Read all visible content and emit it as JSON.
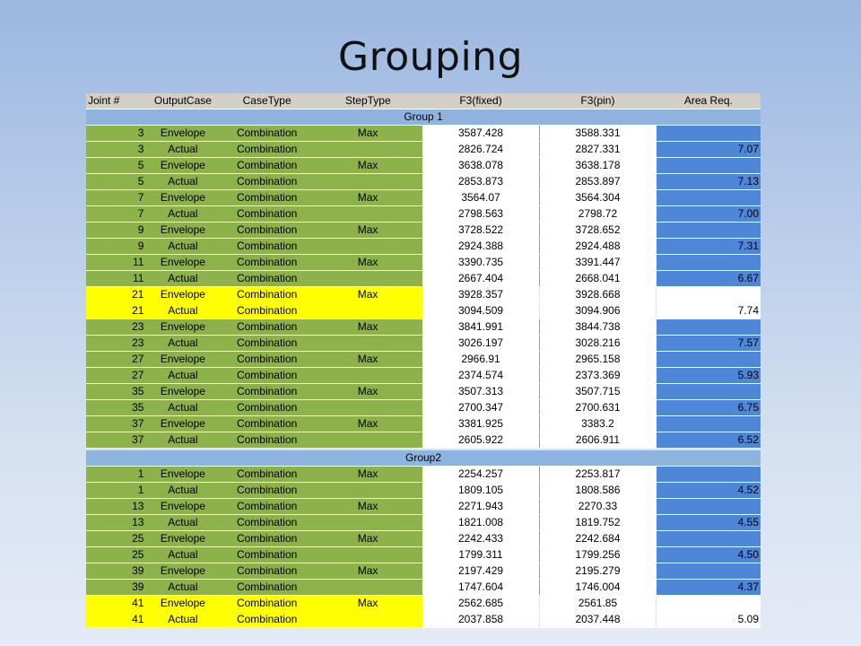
{
  "title": "Grouping",
  "headers": [
    "Joint #",
    "OutputCase",
    "CaseType",
    "StepType",
    "F3(fixed)",
    "F3(pin)",
    "Area Req."
  ],
  "groups": [
    {
      "label": "Group 1",
      "rows": [
        {
          "joint": "3",
          "output": "Envelope",
          "case": "Combination",
          "step": "Max",
          "f3fixed": "3587.428",
          "f3pin": "3588.331",
          "area": "",
          "color": "green"
        },
        {
          "joint": "3",
          "output": "Actual",
          "case": "Combination",
          "step": "",
          "f3fixed": "2826.724",
          "f3pin": "2827.331",
          "area": "7.07",
          "color": "green"
        },
        {
          "joint": "5",
          "output": "Envelope",
          "case": "Combination",
          "step": "Max",
          "f3fixed": "3638.078",
          "f3pin": "3638.178",
          "area": "",
          "color": "green"
        },
        {
          "joint": "5",
          "output": "Actual",
          "case": "Combination",
          "step": "",
          "f3fixed": "2853.873",
          "f3pin": "2853.897",
          "area": "7.13",
          "color": "green"
        },
        {
          "joint": "7",
          "output": "Envelope",
          "case": "Combination",
          "step": "Max",
          "f3fixed": "3564.07",
          "f3pin": "3564.304",
          "area": "",
          "color": "green"
        },
        {
          "joint": "7",
          "output": "Actual",
          "case": "Combination",
          "step": "",
          "f3fixed": "2798.563",
          "f3pin": "2798.72",
          "area": "7.00",
          "color": "green"
        },
        {
          "joint": "9",
          "output": "Envelope",
          "case": "Combination",
          "step": "Max",
          "f3fixed": "3728.522",
          "f3pin": "3728.652",
          "area": "",
          "color": "green"
        },
        {
          "joint": "9",
          "output": "Actual",
          "case": "Combination",
          "step": "",
          "f3fixed": "2924.388",
          "f3pin": "2924.488",
          "area": "7.31",
          "color": "green"
        },
        {
          "joint": "11",
          "output": "Envelope",
          "case": "Combination",
          "step": "Max",
          "f3fixed": "3390.735",
          "f3pin": "3391.447",
          "area": "",
          "color": "green"
        },
        {
          "joint": "11",
          "output": "Actual",
          "case": "Combination",
          "step": "",
          "f3fixed": "2667.404",
          "f3pin": "2668.041",
          "area": "6.67",
          "color": "green"
        },
        {
          "joint": "21",
          "output": "Envelope",
          "case": "Combination",
          "step": "Max",
          "f3fixed": "3928.357",
          "f3pin": "3928.668",
          "area": "",
          "color": "yellow"
        },
        {
          "joint": "21",
          "output": "Actual",
          "case": "Combination",
          "step": "",
          "f3fixed": "3094.509",
          "f3pin": "3094.906",
          "area": "7.74",
          "color": "yellow"
        },
        {
          "joint": "23",
          "output": "Envelope",
          "case": "Combination",
          "step": "Max",
          "f3fixed": "3841.991",
          "f3pin": "3844.738",
          "area": "",
          "color": "green"
        },
        {
          "joint": "23",
          "output": "Actual",
          "case": "Combination",
          "step": "",
          "f3fixed": "3026.197",
          "f3pin": "3028.216",
          "area": "7.57",
          "color": "green"
        },
        {
          "joint": "27",
          "output": "Envelope",
          "case": "Combination",
          "step": "Max",
          "f3fixed": "2966.91",
          "f3pin": "2965.158",
          "area": "",
          "color": "green"
        },
        {
          "joint": "27",
          "output": "Actual",
          "case": "Combination",
          "step": "",
          "f3fixed": "2374.574",
          "f3pin": "2373.369",
          "area": "5.93",
          "color": "green"
        },
        {
          "joint": "35",
          "output": "Envelope",
          "case": "Combination",
          "step": "Max",
          "f3fixed": "3507.313",
          "f3pin": "3507.715",
          "area": "",
          "color": "green"
        },
        {
          "joint": "35",
          "output": "Actual",
          "case": "Combination",
          "step": "",
          "f3fixed": "2700.347",
          "f3pin": "2700.631",
          "area": "6.75",
          "color": "green"
        },
        {
          "joint": "37",
          "output": "Envelope",
          "case": "Combination",
          "step": "Max",
          "f3fixed": "3381.925",
          "f3pin": "3383.2",
          "area": "",
          "color": "green"
        },
        {
          "joint": "37",
          "output": "Actual",
          "case": "Combination",
          "step": "",
          "f3fixed": "2605.922",
          "f3pin": "2606.911",
          "area": "6.52",
          "color": "green"
        }
      ]
    },
    {
      "label": "Group2",
      "rows": [
        {
          "joint": "1",
          "output": "Envelope",
          "case": "Combination",
          "step": "Max",
          "f3fixed": "2254.257",
          "f3pin": "2253.817",
          "area": "",
          "color": "green"
        },
        {
          "joint": "1",
          "output": "Actual",
          "case": "Combination",
          "step": "",
          "f3fixed": "1809.105",
          "f3pin": "1808.586",
          "area": "4.52",
          "color": "green"
        },
        {
          "joint": "13",
          "output": "Envelope",
          "case": "Combination",
          "step": "Max",
          "f3fixed": "2271.943",
          "f3pin": "2270.33",
          "area": "",
          "color": "green"
        },
        {
          "joint": "13",
          "output": "Actual",
          "case": "Combination",
          "step": "",
          "f3fixed": "1821.008",
          "f3pin": "1819.752",
          "area": "4.55",
          "color": "green"
        },
        {
          "joint": "25",
          "output": "Envelope",
          "case": "Combination",
          "step": "Max",
          "f3fixed": "2242.433",
          "f3pin": "2242.684",
          "area": "",
          "color": "green"
        },
        {
          "joint": "25",
          "output": "Actual",
          "case": "Combination",
          "step": "",
          "f3fixed": "1799.311",
          "f3pin": "1799.256",
          "area": "4.50",
          "color": "green"
        },
        {
          "joint": "39",
          "output": "Envelope",
          "case": "Combination",
          "step": "Max",
          "f3fixed": "2197.429",
          "f3pin": "2195.279",
          "area": "",
          "color": "green"
        },
        {
          "joint": "39",
          "output": "Actual",
          "case": "Combination",
          "step": "",
          "f3fixed": "1747.604",
          "f3pin": "1746.004",
          "area": "4.37",
          "color": "green"
        },
        {
          "joint": "41",
          "output": "Envelope",
          "case": "Combination",
          "step": "Max",
          "f3fixed": "2562.685",
          "f3pin": "2561.85",
          "area": "",
          "color": "yellow"
        },
        {
          "joint": "41",
          "output": "Actual",
          "case": "Combination",
          "step": "",
          "f3fixed": "2037.858",
          "f3pin": "2037.448",
          "area": "5.09",
          "color": "yellow"
        }
      ]
    }
  ],
  "colors": {
    "green": "#8db14b",
    "yellow": "#ffff00",
    "area_blue": "#4f87d8",
    "group_band": "#8fb3df",
    "header": "#d4cfc6"
  }
}
